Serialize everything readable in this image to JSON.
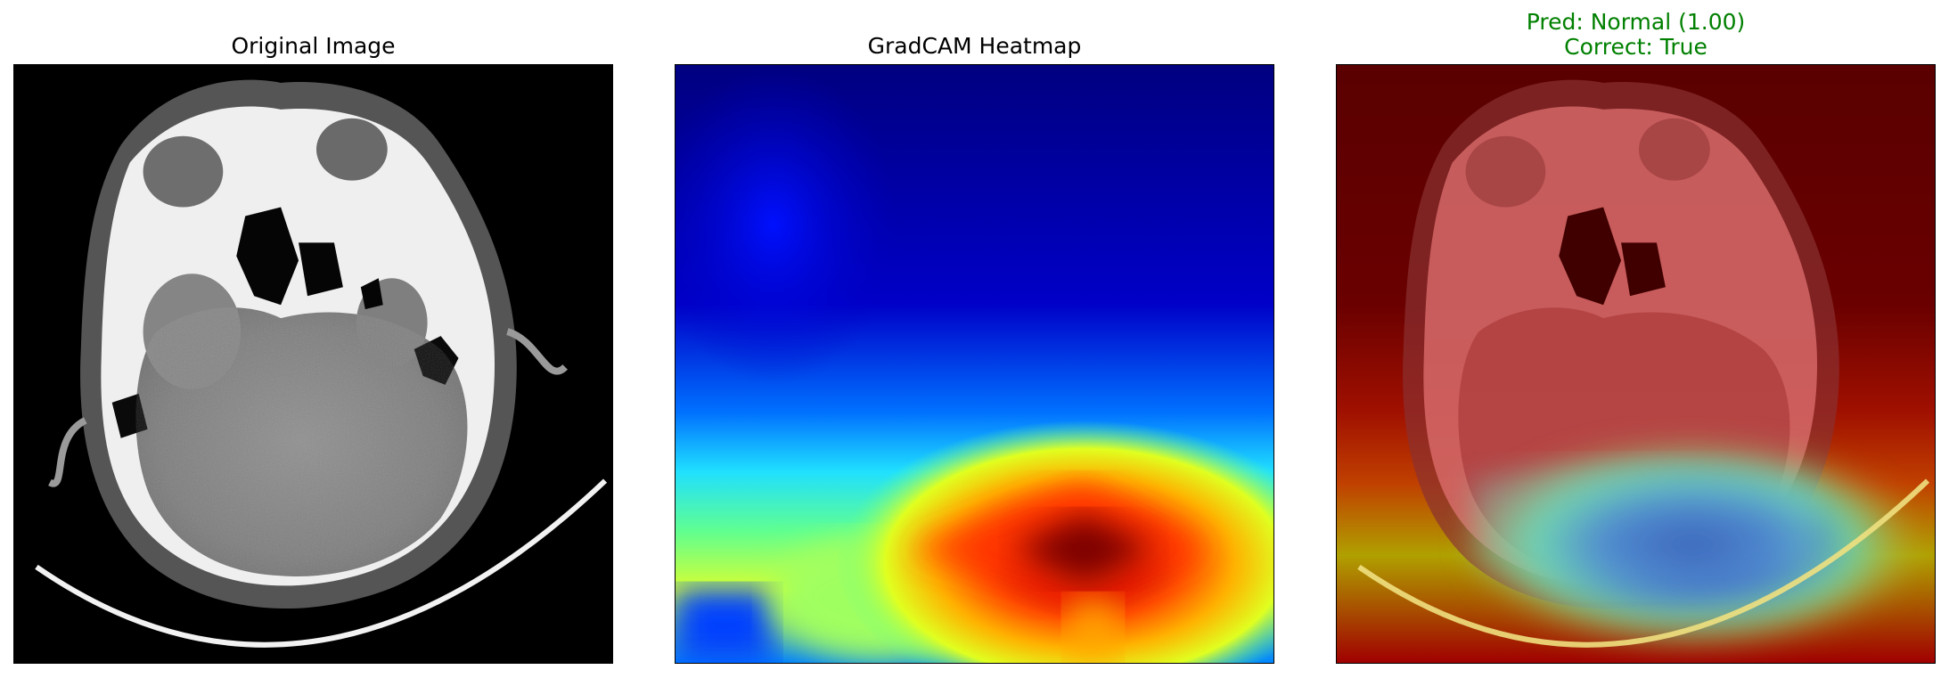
{
  "panels": [
    {
      "title": "Original Image",
      "image": "axial-brain-ct-scan"
    },
    {
      "title": "GradCAM Heatmap",
      "image": "gradcam-jet-heatmap"
    },
    {
      "title_line1": "Pred: Normal (1.00)",
      "title_line2": "Correct: True",
      "title_color": "#008000",
      "image": "gradcam-overlay-on-ct"
    }
  ]
}
